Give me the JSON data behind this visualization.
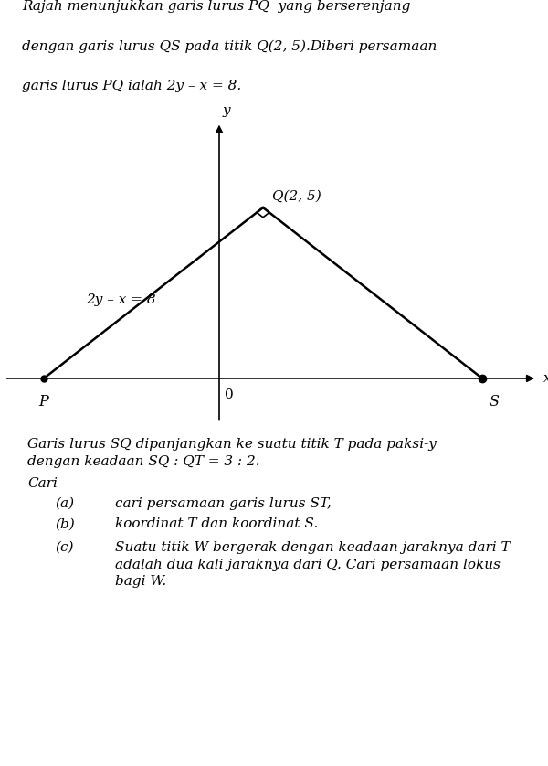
{
  "equation_label": "2y – x = 8",
  "Q_label": "Q(2, 5)",
  "P_label": "P",
  "S_label": "S",
  "O_label": "0",
  "x_label": "x",
  "y_label": "y",
  "P": [
    -8,
    0
  ],
  "Q": [
    2,
    5
  ],
  "S": [
    12,
    0
  ],
  "bg_color": "#ffffff",
  "line_color": "#000000",
  "font_size": 11,
  "title_line1": "Rajah menunjukkan garis lurus PQ  yang berserenjang",
  "title_line2": "dengan garis lurus QS pada titik Q(2, 5).Diberi persamaan",
  "title_line3": "garis lurus PQ ialah 2y – x = 8.",
  "para1_line1": "Garis lurus SQ dipanjangkan ke suatu titik T pada paksi-y",
  "para1_line2": "dengan keadaan SQ : QT = 3 : 2.",
  "cari": "Cari",
  "item_a_num": "(a)",
  "item_a_txt": "cari persamaan garis lurus ST,",
  "item_b_num": "(b)",
  "item_b_txt": "koordinat T dan koordinat S.",
  "item_c_num": "(c)",
  "item_c_line1": "Suatu titik W bergerak dengan keadaan jaraknya dari T",
  "item_c_line2": "adalah dua kali jaraknya dari Q. Cari persamaan lokus",
  "item_c_line3": "bagi W."
}
